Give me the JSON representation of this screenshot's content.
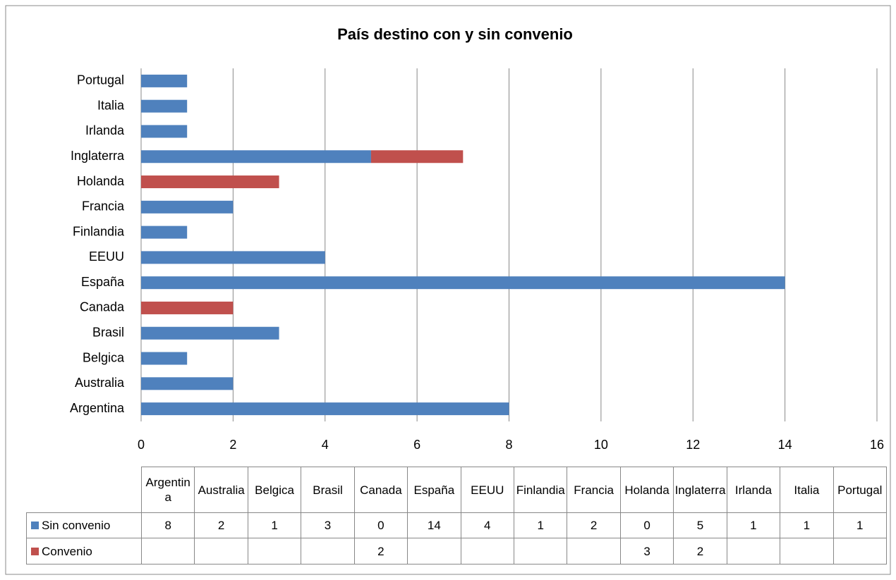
{
  "chart_data": {
    "type": "stacked_bar_horizontal",
    "title": "País destino con y sin convenio",
    "categories": [
      "Argentina",
      "Australia",
      "Belgica",
      "Brasil",
      "Canada",
      "España",
      "EEUU",
      "Finlandia",
      "Francia",
      "Holanda",
      "Inglaterra",
      "Irlanda",
      "Italia",
      "Portugal"
    ],
    "series": [
      {
        "name": "Sin convenio",
        "color": "#4f81bd",
        "values": [
          8,
          2,
          1,
          3,
          0,
          14,
          4,
          1,
          2,
          0,
          5,
          1,
          1,
          1
        ]
      },
      {
        "name": "Convenio",
        "color": "#c0504d",
        "values": [
          null,
          null,
          null,
          null,
          2,
          null,
          null,
          null,
          null,
          3,
          2,
          null,
          null,
          null
        ]
      }
    ],
    "xlim": [
      0,
      16
    ],
    "xticks": [
      0,
      2,
      4,
      6,
      8,
      10,
      12,
      14,
      16
    ],
    "grid": true,
    "data_table": true
  }
}
